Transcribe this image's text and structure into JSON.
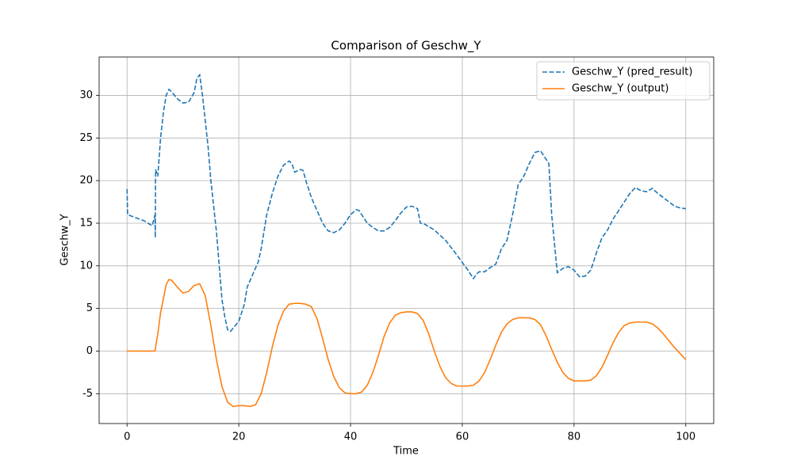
{
  "chart_data": {
    "type": "line",
    "title": "Comparison of Geschw_Y",
    "x_label": "Time",
    "y_label": "Geschw_Y",
    "xlim": [
      -5,
      105
    ],
    "xticks": [
      0,
      20,
      40,
      60,
      80,
      100
    ],
    "ylim": [
      -8.5,
      34.5
    ],
    "yticks": [
      -5,
      0,
      5,
      10,
      15,
      20,
      25,
      30
    ],
    "grid": true,
    "legend": "upper right",
    "series": [
      {
        "name": "Geschw_Y (pred_result)",
        "color": "#1f77b4",
        "dashed": true,
        "x": [
          0,
          0.1,
          3,
          4.5,
          5,
          5.05,
          5.1,
          5.5,
          6,
          6.5,
          7,
          7.5,
          8,
          9,
          10,
          11,
          12,
          12.5,
          13,
          13.5,
          14,
          14.5,
          15,
          16,
          17,
          17.5,
          18,
          18.5,
          19,
          20,
          21,
          21.5,
          22.5,
          23.5,
          24,
          25,
          26,
          27,
          28,
          29,
          29.5,
          30,
          31,
          31.5,
          32,
          33,
          34,
          35,
          36,
          37,
          38,
          39,
          40,
          41,
          41.5,
          42,
          43,
          44,
          45,
          46,
          47,
          48,
          49,
          50,
          51,
          52,
          52.5,
          53,
          55,
          57,
          59,
          61,
          62,
          62.5,
          63,
          64,
          65,
          66,
          67,
          68,
          69,
          70,
          71,
          72,
          73,
          74,
          75,
          75.5,
          76,
          77,
          78,
          79,
          80,
          81,
          82,
          83,
          84,
          85,
          86,
          87,
          88,
          89,
          90,
          91,
          92,
          93,
          94,
          95,
          96,
          97,
          98,
          99,
          100
        ],
        "values": [
          19,
          16,
          15.3,
          14.7,
          16,
          13.3,
          21.3,
          20.5,
          25,
          28,
          30,
          30.7,
          30.4,
          29.6,
          29.1,
          29.2,
          30.3,
          32,
          32.4,
          30,
          27,
          24,
          20,
          14,
          6,
          4,
          2.5,
          2.3,
          2.7,
          3.5,
          5.5,
          7.5,
          9,
          10.5,
          12,
          16,
          18.5,
          20.5,
          21.8,
          22.3,
          22,
          21,
          21.3,
          21.2,
          20,
          18,
          16.5,
          15,
          14.1,
          13.9,
          14.2,
          15,
          16,
          16.6,
          16.5,
          16,
          15,
          14.5,
          14.1,
          14.1,
          14.5,
          15.3,
          16.2,
          16.9,
          17,
          16.7,
          15,
          15,
          14.2,
          13,
          11.3,
          9.5,
          8.5,
          9,
          9.3,
          9.3,
          9.8,
          10.2,
          12,
          13,
          16,
          19.5,
          20.5,
          22,
          23.3,
          23.5,
          22.5,
          22,
          16,
          9.2,
          9.7,
          9.9,
          9.5,
          8.7,
          8.8,
          9.5,
          11.5,
          13.3,
          14.2,
          15.5,
          16.5,
          17.5,
          18.5,
          19.2,
          18.8,
          18.7,
          19.1,
          18.5,
          18,
          17.5,
          17,
          16.8,
          16.7
        ]
      },
      {
        "name": "Geschw_Y (output)",
        "color": "#ff7f0e",
        "dashed": false,
        "x": [
          0,
          5,
          5.5,
          6,
          7,
          7.5,
          8,
          9,
          10,
          11,
          12,
          13,
          14,
          15,
          16,
          17,
          18,
          19,
          20,
          21,
          22,
          23,
          24,
          25,
          26,
          27,
          28,
          29,
          30,
          31,
          32,
          33,
          34,
          35,
          36,
          37,
          38,
          39,
          40,
          41,
          42,
          43,
          44,
          45,
          46,
          47,
          48,
          49,
          50,
          51,
          52,
          53,
          54,
          55,
          56,
          57,
          58,
          59,
          60,
          61,
          62,
          63,
          64,
          65,
          66,
          67,
          68,
          69,
          70,
          71,
          72,
          73,
          74,
          75,
          76,
          77,
          78,
          79,
          80,
          81,
          82,
          83,
          84,
          85,
          86,
          87,
          88,
          89,
          90,
          91,
          92,
          93,
          94,
          95,
          96,
          97,
          98,
          99,
          100
        ],
        "values": [
          0,
          0,
          2,
          4.5,
          7.8,
          8.4,
          8.3,
          7.5,
          6.8,
          7,
          7.7,
          7.9,
          6.5,
          3,
          -1,
          -4.2,
          -6,
          -6.5,
          -6.4,
          -6.4,
          -6.5,
          -6.3,
          -5,
          -2.5,
          0.5,
          3,
          4.7,
          5.5,
          5.6,
          5.6,
          5.5,
          5.2,
          3.8,
          1.5,
          -1,
          -3,
          -4.3,
          -4.9,
          -5,
          -5,
          -4.8,
          -4,
          -2.5,
          -0.5,
          1.7,
          3.3,
          4.2,
          4.5,
          4.6,
          4.6,
          4.4,
          3.6,
          2,
          0,
          -1.8,
          -3.1,
          -3.8,
          -4.1,
          -4.1,
          -4.1,
          -4,
          -3.5,
          -2.5,
          -1,
          0.7,
          2.2,
          3.2,
          3.7,
          3.9,
          3.9,
          3.9,
          3.7,
          3.1,
          1.8,
          0.2,
          -1.3,
          -2.5,
          -3.2,
          -3.5,
          -3.5,
          -3.5,
          -3.4,
          -2.9,
          -1.9,
          -0.5,
          1,
          2.2,
          3,
          3.3,
          3.4,
          3.4,
          3.4,
          3.2,
          2.7,
          2,
          1.2,
          0.4,
          -0.3,
          -1
        ]
      }
    ]
  }
}
